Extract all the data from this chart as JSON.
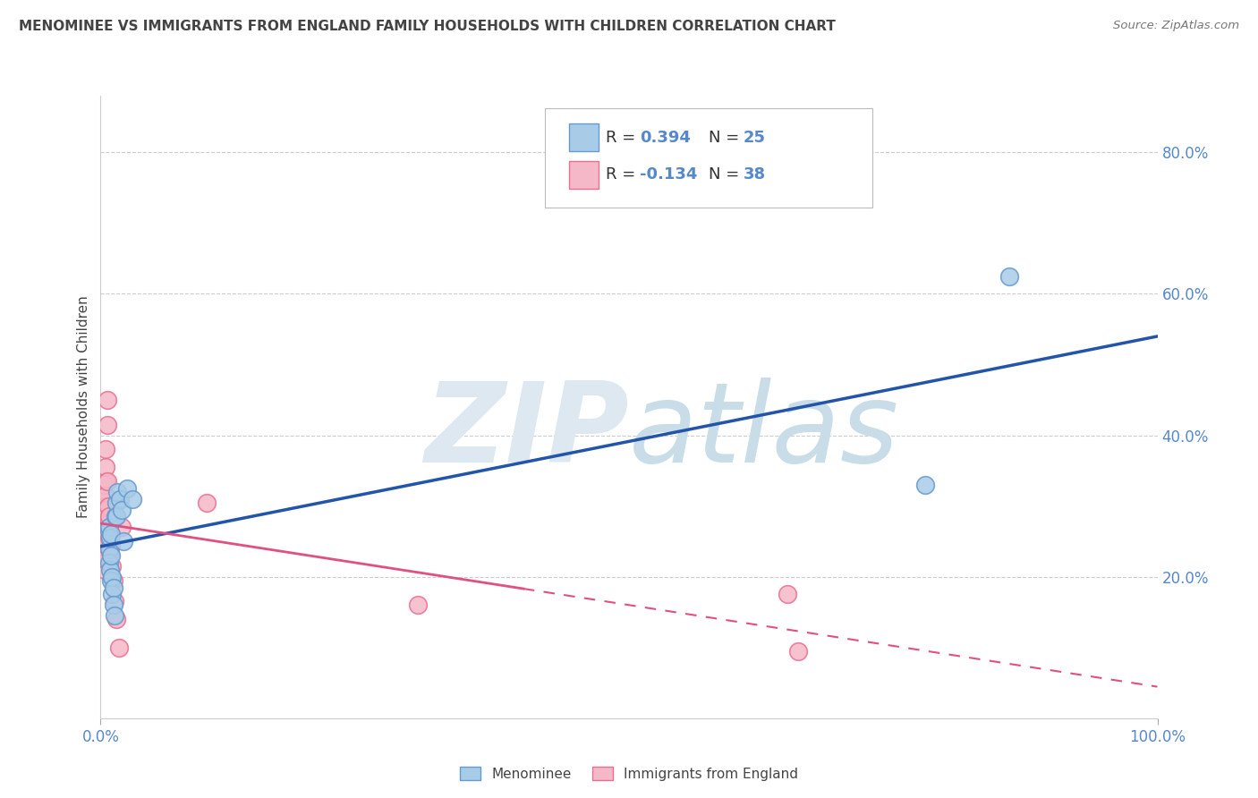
{
  "title": "MENOMINEE VS IMMIGRANTS FROM ENGLAND FAMILY HOUSEHOLDS WITH CHILDREN CORRELATION CHART",
  "source": "Source: ZipAtlas.com",
  "ylabel": "Family Households with Children",
  "right_yticks": [
    "80.0%",
    "60.0%",
    "40.0%",
    "20.0%"
  ],
  "right_ytick_vals": [
    0.8,
    0.6,
    0.4,
    0.2
  ],
  "menominee_x": [
    0.008,
    0.008,
    0.008,
    0.008,
    0.009,
    0.009,
    0.01,
    0.01,
    0.01,
    0.011,
    0.011,
    0.012,
    0.012,
    0.013,
    0.014,
    0.015,
    0.015,
    0.016,
    0.018,
    0.02,
    0.022,
    0.025,
    0.03,
    0.78,
    0.86
  ],
  "menominee_y": [
    0.265,
    0.27,
    0.24,
    0.22,
    0.255,
    0.21,
    0.26,
    0.23,
    0.195,
    0.2,
    0.175,
    0.185,
    0.16,
    0.145,
    0.285,
    0.305,
    0.285,
    0.32,
    0.31,
    0.295,
    0.25,
    0.325,
    0.31,
    0.33,
    0.625
  ],
  "england_x": [
    0.003,
    0.003,
    0.003,
    0.003,
    0.004,
    0.004,
    0.004,
    0.004,
    0.004,
    0.004,
    0.004,
    0.004,
    0.004,
    0.005,
    0.005,
    0.005,
    0.005,
    0.005,
    0.005,
    0.006,
    0.006,
    0.006,
    0.007,
    0.007,
    0.008,
    0.008,
    0.009,
    0.01,
    0.011,
    0.012,
    0.013,
    0.015,
    0.017,
    0.02,
    0.1,
    0.65,
    0.66,
    0.3
  ],
  "england_y": [
    0.265,
    0.28,
    0.31,
    0.33,
    0.27,
    0.29,
    0.245,
    0.26,
    0.23,
    0.255,
    0.21,
    0.225,
    0.3,
    0.335,
    0.355,
    0.38,
    0.315,
    0.295,
    0.255,
    0.415,
    0.45,
    0.335,
    0.3,
    0.275,
    0.255,
    0.285,
    0.235,
    0.245,
    0.215,
    0.195,
    0.165,
    0.14,
    0.1,
    0.27,
    0.305,
    0.175,
    0.095,
    0.16
  ],
  "blue_scatter_color": "#a8cce8",
  "blue_scatter_edge": "#6699cc",
  "pink_scatter_color": "#f5b8c8",
  "pink_scatter_edge": "#e87090",
  "blue_line_color": "#2255aa",
  "pink_line_color": "#e05080",
  "bg_color": "#ffffff",
  "grid_color": "#cccccc",
  "watermark_color": "#dde8f0",
  "title_color": "#444444",
  "axis_label_color": "#5588cc",
  "xlim": [
    0.0,
    1.0
  ],
  "ylim": [
    0.0,
    0.88
  ]
}
